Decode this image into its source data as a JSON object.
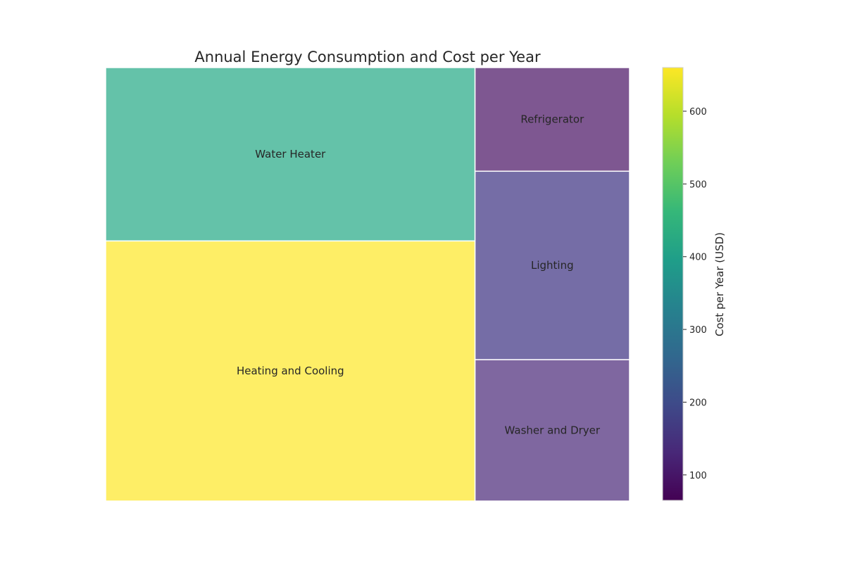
{
  "chart_data": {
    "type": "treemap",
    "title": "Annual Energy Consumption and Cost per Year",
    "items": [
      {
        "label": "Heating and Cooling",
        "cost": 660,
        "color": "#fde725"
      },
      {
        "label": "Water Heater",
        "cost": 440,
        "color": "#22a884"
      },
      {
        "label": "Lighting",
        "cost": 200,
        "color": "#3b2f80"
      },
      {
        "label": "Washer and Dryer",
        "cost": 150,
        "color": "#482777"
      },
      {
        "label": "Refrigerator",
        "cost": 110,
        "color": "#471063"
      }
    ],
    "colorbar": {
      "label": "Cost per Year (USD)",
      "range": [
        65,
        660
      ],
      "ticks": [
        100,
        200,
        300,
        400,
        500,
        600
      ],
      "colormap": "viridis",
      "stops": [
        "#440154",
        "#482878",
        "#3e4a89",
        "#31688e",
        "#26828e",
        "#1f9e89",
        "#35b779",
        "#6ece58",
        "#b5de2b",
        "#fde725"
      ]
    }
  }
}
